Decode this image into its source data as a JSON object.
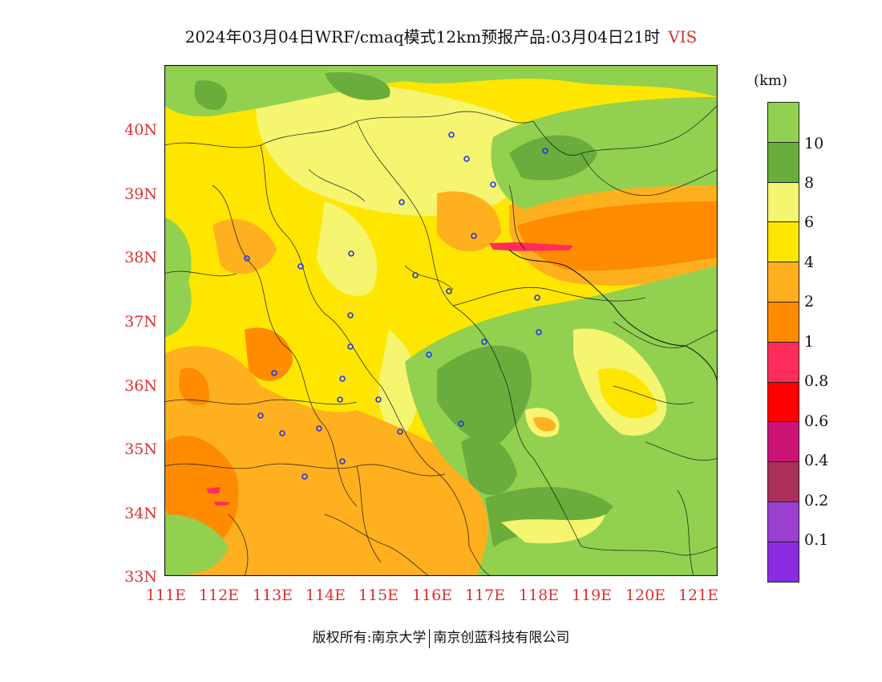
{
  "title": {
    "main": "2024年03月04日WRF/cmaq模式12km预报产品:03月04日21时",
    "variable": "VIS"
  },
  "map": {
    "y_axis_labels": [
      "40N",
      "39N",
      "38N",
      "37N",
      "36N",
      "35N",
      "34N",
      "33N"
    ],
    "x_axis_labels": [
      "111E",
      "112E",
      "113E",
      "114E",
      "115E",
      "116E",
      "117E",
      "118E",
      "119E",
      "120E",
      "121E"
    ]
  },
  "legend": {
    "unit": "(km)",
    "labels": [
      "10",
      "8",
      "6",
      "4",
      "2",
      "1",
      "0.8",
      "0.6",
      "0.4",
      "0.2",
      "0.1"
    ],
    "colors": [
      "#92d050",
      "#6aad3c",
      "#f5f570",
      "#ffe600",
      "#ffb01e",
      "#ff8c00",
      "#ff2d5a",
      "#ff0000",
      "#cc1477",
      "#a8305a",
      "#9b3fd0",
      "#8a2be2"
    ]
  },
  "footer": {
    "copyright": "版权所有:南京大学",
    "company": "南京创蓝科技有限公司"
  },
  "colors": {
    "axis_label": "#e03030",
    "title_var": "#e03030"
  }
}
